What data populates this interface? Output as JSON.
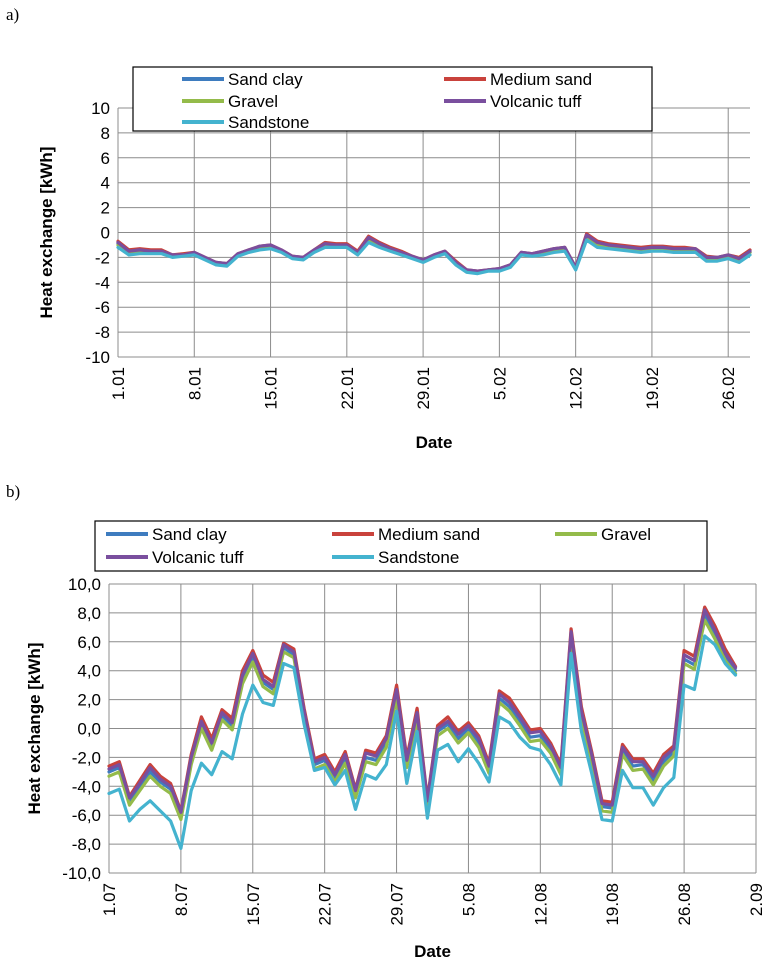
{
  "colors": {
    "Sand clay": "#3e7cbf",
    "Medium sand": "#c9423c",
    "Gravel": "#94bb4a",
    "Volcanic tuff": "#7a4f9e",
    "Sandstone": "#44b3cf"
  },
  "chart_data": [
    {
      "type": "line",
      "panel_label": "a)",
      "xlabel": "Date",
      "ylabel": "Heat exchange [kWh]",
      "ylim": [
        -10,
        10
      ],
      "y_ticks": [
        "-10",
        "-8",
        "-6",
        "-4",
        "-2",
        "0",
        "2",
        "4",
        "6",
        "8",
        "10"
      ],
      "x_tick_labels": [
        "1.01",
        "8.01",
        "15.01",
        "22.01",
        "29.01",
        "5.02",
        "12.02",
        "19.02",
        "26.02"
      ],
      "x_tick_positions": [
        1,
        8,
        15,
        22,
        29,
        36,
        43,
        50,
        57
      ],
      "x_range": [
        1,
        59
      ],
      "grid": true,
      "legend_position": "top",
      "x": [
        1,
        2,
        3,
        4,
        5,
        6,
        7,
        8,
        9,
        10,
        11,
        12,
        13,
        14,
        15,
        16,
        17,
        18,
        19,
        20,
        21,
        22,
        23,
        24,
        25,
        26,
        27,
        28,
        29,
        30,
        31,
        32,
        33,
        34,
        35,
        36,
        37,
        38,
        39,
        40,
        41,
        42,
        43,
        44,
        45,
        46,
        47,
        48,
        49,
        50,
        51,
        52,
        53,
        54,
        55,
        56,
        57,
        58,
        59
      ],
      "series": [
        {
          "name": "Sand clay",
          "values": [
            -0.9,
            -1.6,
            -1.5,
            -1.6,
            -1.6,
            -1.9,
            -1.8,
            -1.7,
            -2.1,
            -2.5,
            -2.6,
            -1.8,
            -1.5,
            -1.2,
            -1.1,
            -1.5,
            -2.0,
            -2.1,
            -1.5,
            -1.0,
            -1.1,
            -1.1,
            -1.6,
            -0.5,
            -1.0,
            -1.4,
            -1.7,
            -2.0,
            -2.3,
            -1.9,
            -1.6,
            -2.5,
            -3.1,
            -3.2,
            -3.0,
            -3.0,
            -2.7,
            -1.7,
            -1.8,
            -1.6,
            -1.4,
            -1.3,
            -2.9,
            -0.3,
            -0.9,
            -1.1,
            -1.2,
            -1.3,
            -1.4,
            -1.3,
            -1.3,
            -1.4,
            -1.4,
            -1.4,
            -2.1,
            -2.1,
            -1.9,
            -2.2,
            -1.6
          ]
        },
        {
          "name": "Medium sand",
          "values": [
            -0.7,
            -1.4,
            -1.3,
            -1.4,
            -1.4,
            -1.8,
            -1.7,
            -1.6,
            -2.0,
            -2.4,
            -2.5,
            -1.7,
            -1.4,
            -1.1,
            -1.0,
            -1.4,
            -1.9,
            -2.0,
            -1.4,
            -0.8,
            -0.9,
            -0.9,
            -1.5,
            -0.3,
            -0.8,
            -1.2,
            -1.5,
            -1.9,
            -2.2,
            -1.8,
            -1.5,
            -2.3,
            -3.0,
            -3.1,
            -3.0,
            -2.9,
            -2.6,
            -1.6,
            -1.7,
            -1.5,
            -1.3,
            -1.2,
            -2.8,
            -0.1,
            -0.7,
            -0.9,
            -1.0,
            -1.1,
            -1.2,
            -1.1,
            -1.1,
            -1.2,
            -1.2,
            -1.3,
            -1.9,
            -2.0,
            -1.8,
            -2.0,
            -1.4
          ]
        },
        {
          "name": "Gravel",
          "values": [
            -1.0,
            -1.6,
            -1.5,
            -1.6,
            -1.6,
            -1.9,
            -1.8,
            -1.7,
            -2.1,
            -2.5,
            -2.6,
            -1.8,
            -1.5,
            -1.2,
            -1.1,
            -1.5,
            -2.0,
            -2.1,
            -1.5,
            -1.0,
            -1.1,
            -1.1,
            -1.7,
            -0.6,
            -1.1,
            -1.4,
            -1.7,
            -2.0,
            -2.3,
            -1.9,
            -1.6,
            -2.5,
            -3.1,
            -3.2,
            -3.0,
            -3.0,
            -2.7,
            -1.7,
            -1.8,
            -1.6,
            -1.4,
            -1.3,
            -2.9,
            -0.4,
            -1.0,
            -1.1,
            -1.2,
            -1.3,
            -1.4,
            -1.3,
            -1.3,
            -1.4,
            -1.4,
            -1.4,
            -2.1,
            -2.1,
            -1.9,
            -2.2,
            -1.6
          ]
        },
        {
          "name": "Volcanic tuff",
          "values": [
            -0.8,
            -1.5,
            -1.4,
            -1.5,
            -1.5,
            -1.8,
            -1.8,
            -1.6,
            -2.0,
            -2.4,
            -2.5,
            -1.7,
            -1.4,
            -1.1,
            -1.0,
            -1.4,
            -1.9,
            -2.0,
            -1.4,
            -0.9,
            -1.0,
            -1.0,
            -1.6,
            -0.4,
            -0.9,
            -1.3,
            -1.6,
            -1.9,
            -2.2,
            -1.8,
            -1.5,
            -2.4,
            -3.0,
            -3.1,
            -3.0,
            -2.9,
            -2.6,
            -1.6,
            -1.7,
            -1.5,
            -1.3,
            -1.2,
            -2.8,
            -0.2,
            -0.8,
            -1.0,
            -1.1,
            -1.2,
            -1.3,
            -1.2,
            -1.2,
            -1.3,
            -1.3,
            -1.3,
            -2.0,
            -2.0,
            -1.8,
            -2.1,
            -1.5
          ]
        },
        {
          "name": "Sandstone",
          "values": [
            -1.2,
            -1.8,
            -1.7,
            -1.7,
            -1.7,
            -2.0,
            -1.9,
            -1.8,
            -2.2,
            -2.6,
            -2.7,
            -1.9,
            -1.6,
            -1.4,
            -1.3,
            -1.6,
            -2.1,
            -2.2,
            -1.6,
            -1.2,
            -1.2,
            -1.2,
            -1.8,
            -0.8,
            -1.2,
            -1.5,
            -1.8,
            -2.1,
            -2.4,
            -2.0,
            -1.7,
            -2.6,
            -3.2,
            -3.3,
            -3.1,
            -3.1,
            -2.8,
            -1.8,
            -1.9,
            -1.8,
            -1.6,
            -1.5,
            -3.0,
            -0.6,
            -1.2,
            -1.3,
            -1.4,
            -1.5,
            -1.6,
            -1.5,
            -1.5,
            -1.6,
            -1.6,
            -1.6,
            -2.3,
            -2.3,
            -2.1,
            -2.4,
            -1.8
          ]
        }
      ],
      "legend": [
        "Sand clay",
        "Medium sand",
        "Gravel",
        "Volcanic tuff",
        "Sandstone"
      ]
    },
    {
      "type": "line",
      "panel_label": "b)",
      "xlabel": "Date",
      "ylabel": "Heat exchange [kWh]",
      "ylim": [
        -10,
        10
      ],
      "y_ticks": [
        "-10,0",
        "-8,0",
        "-6,0",
        "-4,0",
        "-2,0",
        "0,0",
        "2,0",
        "4,0",
        "6,0",
        "8,0",
        "10,0"
      ],
      "x_tick_labels": [
        "1.07",
        "8.07",
        "15.07",
        "22.07",
        "29.07",
        "5.08",
        "12.08",
        "19.08",
        "26.08",
        "2.09"
      ],
      "x_tick_positions": [
        1,
        8,
        15,
        22,
        29,
        36,
        43,
        50,
        57,
        64
      ],
      "x_range": [
        1,
        64
      ],
      "grid": true,
      "legend_position": "top",
      "x": [
        1,
        2,
        3,
        4,
        5,
        6,
        7,
        8,
        9,
        10,
        11,
        12,
        13,
        14,
        15,
        16,
        17,
        18,
        19,
        20,
        21,
        22,
        23,
        24,
        25,
        26,
        27,
        28,
        29,
        30,
        31,
        32,
        33,
        34,
        35,
        36,
        37,
        38,
        39,
        40,
        41,
        42,
        43,
        44,
        45,
        46,
        47,
        48,
        49,
        50,
        51,
        52,
        53,
        54,
        55,
        56,
        57,
        58,
        59,
        60,
        61,
        62
      ],
      "series": [
        {
          "name": "Sand clay",
          "values": [
            -3.0,
            -2.7,
            -5.0,
            -4.0,
            -3.0,
            -3.7,
            -4.2,
            -6.0,
            -2.2,
            0.3,
            -1.2,
            0.9,
            0.2,
            3.4,
            4.9,
            3.2,
            2.7,
            5.6,
            5.1,
            1.0,
            -2.5,
            -2.2,
            -3.4,
            -2.1,
            -4.5,
            -2.0,
            -2.2,
            -1.0,
            2.4,
            -2.4,
            0.9,
            -5.2,
            -0.2,
            0.3,
            -0.7,
            0.0,
            -1.0,
            -2.8,
            2.1,
            1.5,
            0.5,
            -0.6,
            -0.5,
            -1.4,
            -2.9,
            6.4,
            1.0,
            -2.1,
            -5.4,
            -5.5,
            -1.5,
            -2.6,
            -2.5,
            -3.6,
            -2.3,
            -1.6,
            4.8,
            4.4,
            7.8,
            6.5,
            5.0,
            4.0
          ]
        },
        {
          "name": "Medium sand",
          "values": [
            -2.6,
            -2.3,
            -4.7,
            -3.6,
            -2.5,
            -3.3,
            -3.8,
            -5.7,
            -1.8,
            0.8,
            -0.7,
            1.3,
            0.7,
            4.0,
            5.4,
            3.7,
            3.2,
            5.9,
            5.5,
            1.4,
            -2.1,
            -1.8,
            -3.0,
            -1.6,
            -4.2,
            -1.5,
            -1.7,
            -0.5,
            3.0,
            -2.0,
            1.4,
            -4.9,
            0.2,
            0.8,
            -0.2,
            0.4,
            -0.5,
            -2.4,
            2.6,
            2.1,
            1.0,
            -0.1,
            0.0,
            -1.0,
            -2.5,
            6.9,
            1.5,
            -1.6,
            -5.0,
            -5.1,
            -1.1,
            -2.1,
            -2.1,
            -3.1,
            -1.8,
            -1.2,
            5.4,
            5.0,
            8.4,
            7.1,
            5.5,
            4.3
          ]
        },
        {
          "name": "Gravel",
          "values": [
            -3.3,
            -3.0,
            -5.3,
            -4.3,
            -3.3,
            -4.0,
            -4.5,
            -6.3,
            -2.5,
            0.0,
            -1.5,
            0.6,
            -0.1,
            3.1,
            4.6,
            2.9,
            2.4,
            5.3,
            4.9,
            0.7,
            -2.8,
            -2.5,
            -3.7,
            -2.4,
            -4.8,
            -2.3,
            -2.5,
            -1.3,
            2.1,
            -2.7,
            0.6,
            -5.5,
            -0.5,
            0.0,
            -1.0,
            -0.3,
            -1.3,
            -3.1,
            1.8,
            1.2,
            0.2,
            -0.9,
            -0.8,
            -1.7,
            -3.2,
            6.1,
            0.7,
            -2.4,
            -5.7,
            -5.8,
            -1.8,
            -2.9,
            -2.8,
            -3.9,
            -2.6,
            -1.9,
            4.5,
            4.1,
            7.5,
            6.2,
            4.7,
            3.8
          ]
        },
        {
          "name": "Volcanic tuff",
          "values": [
            -2.8,
            -2.5,
            -4.8,
            -3.8,
            -2.7,
            -3.5,
            -4.0,
            -5.8,
            -2.0,
            0.5,
            -1.0,
            1.1,
            0.4,
            3.7,
            5.2,
            3.4,
            2.9,
            5.8,
            5.3,
            1.2,
            -2.3,
            -2.0,
            -3.2,
            -1.8,
            -4.3,
            -1.7,
            -1.9,
            -0.7,
            2.7,
            -2.2,
            1.1,
            -5.0,
            0.0,
            0.5,
            -0.4,
            0.2,
            -0.7,
            -2.6,
            2.4,
            1.8,
            0.8,
            -0.3,
            -0.2,
            -1.2,
            -2.7,
            6.7,
            1.2,
            -1.8,
            -5.2,
            -5.3,
            -1.3,
            -2.3,
            -2.3,
            -3.3,
            -2.0,
            -1.4,
            5.1,
            4.7,
            8.2,
            6.8,
            5.2,
            4.2
          ]
        },
        {
          "name": "Sandstone",
          "values": [
            -4.5,
            -4.2,
            -6.4,
            -5.6,
            -5.0,
            -5.7,
            -6.4,
            -8.3,
            -4.3,
            -2.4,
            -3.2,
            -1.6,
            -2.1,
            1.0,
            3.0,
            1.8,
            1.6,
            4.5,
            4.2,
            0.3,
            -2.9,
            -2.7,
            -3.9,
            -2.9,
            -5.6,
            -3.2,
            -3.5,
            -2.5,
            1.2,
            -3.8,
            -0.2,
            -6.2,
            -1.5,
            -1.1,
            -2.3,
            -1.4,
            -2.4,
            -3.7,
            0.8,
            0.4,
            -0.6,
            -1.3,
            -1.5,
            -2.5,
            -3.9,
            5.2,
            -0.2,
            -3.1,
            -6.3,
            -6.4,
            -2.9,
            -4.1,
            -4.1,
            -5.3,
            -4.1,
            -3.4,
            3.0,
            2.7,
            6.4,
            5.8,
            4.5,
            3.7
          ]
        }
      ],
      "legend": [
        "Sand clay",
        "Medium sand",
        "Gravel",
        "Volcanic tuff",
        "Sandstone"
      ]
    }
  ]
}
